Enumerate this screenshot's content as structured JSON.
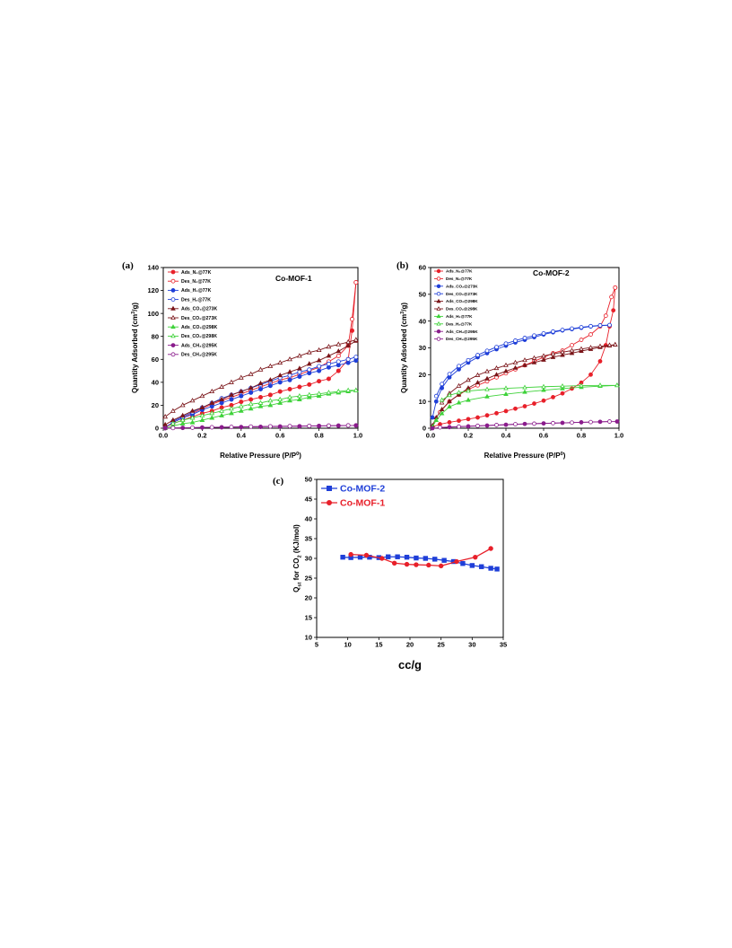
{
  "figure": {
    "panel_tags": [
      "(a)",
      "(b)",
      "(c)"
    ]
  },
  "chart_data": [
    {
      "type": "line",
      "panel_label": "(a)",
      "title": "Co-MOF-1",
      "xlabel": "Relative Pressure (P/P",
      "xlabel_sup": "0",
      "xlabel_end": ")",
      "ylabel": "Quantity Adsorbed (cm",
      "ylabel_sup": "3",
      "ylabel_end": "/g)",
      "xlim": [
        0.0,
        1.0
      ],
      "ylim": [
        0,
        140
      ],
      "xticks": [
        "0.0",
        "0.2",
        "0.4",
        "0.6",
        "0.8",
        "1.0"
      ],
      "yticks": [
        "0",
        "20",
        "40",
        "60",
        "80",
        "100",
        "120",
        "140"
      ],
      "legend_position": "top-left",
      "series": [
        {
          "name": "Ads_N₂@77K",
          "color": "#e8202a",
          "marker": "circle",
          "filled": true,
          "x": [
            0.01,
            0.05,
            0.1,
            0.15,
            0.2,
            0.25,
            0.3,
            0.35,
            0.4,
            0.45,
            0.5,
            0.55,
            0.6,
            0.65,
            0.7,
            0.75,
            0.8,
            0.85,
            0.9,
            0.95,
            0.97,
            0.99
          ],
          "y": [
            1,
            4,
            7,
            10,
            13,
            15,
            18,
            20,
            23,
            25,
            27,
            29,
            32,
            34,
            36,
            38,
            41,
            43,
            50,
            60,
            85,
            127
          ]
        },
        {
          "name": "Des_N₂@77K",
          "color": "#e8202a",
          "marker": "circle",
          "filled": false,
          "x": [
            0.99,
            0.97,
            0.95,
            0.9,
            0.85,
            0.8,
            0.75,
            0.7,
            0.65,
            0.6,
            0.55,
            0.5,
            0.45,
            0.4,
            0.35,
            0.3,
            0.25,
            0.2,
            0.15,
            0.1,
            0.05
          ],
          "y": [
            127,
            95,
            72,
            63,
            58,
            53,
            50,
            47,
            44,
            42,
            39,
            36,
            33,
            30,
            27,
            24,
            21,
            17,
            13,
            9,
            5
          ]
        },
        {
          "name": "Ads_H₂@77K",
          "color": "#1f3fd8",
          "marker": "circle",
          "filled": true,
          "x": [
            0.01,
            0.05,
            0.1,
            0.15,
            0.2,
            0.25,
            0.3,
            0.35,
            0.4,
            0.45,
            0.5,
            0.55,
            0.6,
            0.65,
            0.7,
            0.75,
            0.8,
            0.85,
            0.9,
            0.95,
            0.99
          ],
          "y": [
            1,
            5,
            9,
            12,
            16,
            19,
            22,
            25,
            28,
            31,
            34,
            37,
            40,
            42,
            45,
            48,
            50,
            53,
            55,
            57,
            59
          ]
        },
        {
          "name": "Des_H₂@77K",
          "color": "#1f3fd8",
          "marker": "circle",
          "filled": false,
          "x": [
            0.99,
            0.95,
            0.9,
            0.85,
            0.8,
            0.75,
            0.7,
            0.65,
            0.6,
            0.55,
            0.5,
            0.45,
            0.4,
            0.35,
            0.3,
            0.25,
            0.2,
            0.15,
            0.1,
            0.05
          ],
          "y": [
            62,
            60,
            58,
            56,
            54,
            51,
            49,
            46,
            44,
            41,
            38,
            35,
            32,
            29,
            26,
            22,
            18,
            14,
            10,
            6
          ]
        },
        {
          "name": "Ads_CO₂@273K",
          "color": "#7a1418",
          "marker": "triangle",
          "filled": true,
          "x": [
            0.01,
            0.05,
            0.1,
            0.15,
            0.2,
            0.25,
            0.3,
            0.35,
            0.4,
            0.45,
            0.5,
            0.55,
            0.6,
            0.65,
            0.7,
            0.75,
            0.8,
            0.85,
            0.9,
            0.95,
            0.99
          ],
          "y": [
            3,
            7,
            11,
            15,
            18,
            22,
            25,
            29,
            32,
            35,
            39,
            42,
            46,
            49,
            52,
            56,
            59,
            63,
            67,
            72,
            76
          ]
        },
        {
          "name": "Des_CO₂@273K",
          "color": "#7a1418",
          "marker": "triangle",
          "filled": false,
          "x": [
            0.99,
            0.95,
            0.9,
            0.85,
            0.8,
            0.75,
            0.7,
            0.65,
            0.6,
            0.55,
            0.5,
            0.45,
            0.4,
            0.35,
            0.3,
            0.25,
            0.2,
            0.15,
            0.1,
            0.05,
            0.01
          ],
          "y": [
            77,
            75,
            73,
            71,
            68,
            66,
            63,
            60,
            57,
            54,
            51,
            47,
            44,
            40,
            36,
            32,
            28,
            24,
            20,
            15,
            10
          ]
        },
        {
          "name": "Ads_CO₂@298K",
          "color": "#3fd23a",
          "marker": "triangle",
          "filled": true,
          "x": [
            0.01,
            0.05,
            0.1,
            0.15,
            0.2,
            0.25,
            0.3,
            0.35,
            0.4,
            0.45,
            0.5,
            0.55,
            0.6,
            0.65,
            0.7,
            0.75,
            0.8,
            0.85,
            0.9,
            0.95,
            0.99
          ],
          "y": [
            0,
            2,
            4,
            5,
            7,
            9,
            11,
            13,
            15,
            17,
            19,
            20,
            22,
            24,
            25,
            27,
            28,
            30,
            31,
            32,
            33
          ]
        },
        {
          "name": "Des_CO₂@298K",
          "color": "#3fd23a",
          "marker": "triangle",
          "filled": false,
          "x": [
            0.99,
            0.95,
            0.9,
            0.85,
            0.8,
            0.75,
            0.7,
            0.65,
            0.6,
            0.55,
            0.5,
            0.45,
            0.4,
            0.35,
            0.3,
            0.25,
            0.2,
            0.15,
            0.1,
            0.05
          ],
          "y": [
            33,
            33,
            32,
            31,
            30,
            29,
            28,
            27,
            25,
            24,
            22,
            21,
            19,
            17,
            15,
            13,
            11,
            9,
            7,
            4
          ]
        },
        {
          "name": "Ads_CH₄@295K",
          "color": "#8a1c8c",
          "marker": "circle",
          "filled": true,
          "x": [
            0.01,
            0.1,
            0.2,
            0.3,
            0.4,
            0.5,
            0.6,
            0.7,
            0.8,
            0.9,
            0.99
          ],
          "y": [
            0,
            0.3,
            0.6,
            0.8,
            1,
            1.2,
            1.5,
            1.7,
            2,
            2.2,
            2.4
          ]
        },
        {
          "name": "Des_CH₄@295K",
          "color": "#8a1c8c",
          "marker": "circle",
          "filled": false,
          "x": [
            0.95,
            0.85,
            0.75,
            0.65,
            0.55,
            0.45,
            0.35,
            0.25,
            0.15,
            0.05
          ],
          "y": [
            2.4,
            2.2,
            2,
            1.8,
            1.6,
            1.4,
            1.1,
            0.8,
            0.5,
            0.2
          ]
        }
      ]
    },
    {
      "type": "line",
      "panel_label": "(b)",
      "title": "Co-MOF-2",
      "xlabel": "Relative Pressure (P/P",
      "xlabel_sup": "0",
      "xlabel_end": ")",
      "ylabel": "Quantity Adsorbed (cm",
      "ylabel_sup": "3",
      "ylabel_end": "/g)",
      "xlim": [
        0.0,
        1.0
      ],
      "ylim": [
        0,
        60
      ],
      "xticks": [
        "0.0",
        "0.2",
        "0.4",
        "0.6",
        "0.8",
        "1.0"
      ],
      "yticks": [
        "0",
        "10",
        "20",
        "30",
        "40",
        "50",
        "60"
      ],
      "legend_position": "top-left",
      "series": [
        {
          "name": "Ads_N₂@77K",
          "color": "#e8202a",
          "marker": "circle",
          "filled": true,
          "x": [
            0.01,
            0.05,
            0.1,
            0.15,
            0.2,
            0.25,
            0.3,
            0.35,
            0.4,
            0.45,
            0.5,
            0.55,
            0.6,
            0.65,
            0.7,
            0.75,
            0.8,
            0.85,
            0.9,
            0.93,
            0.95,
            0.97,
            0.98
          ],
          "y": [
            0.5,
            1.5,
            2.2,
            2.8,
            3.4,
            4,
            4.8,
            5.6,
            6.4,
            7.3,
            8.2,
            9.2,
            10.3,
            11.6,
            13,
            14.8,
            17,
            20,
            25,
            31,
            38,
            44,
            52.5
          ]
        },
        {
          "name": "Des_N₂@77K",
          "color": "#e8202a",
          "marker": "circle",
          "filled": false,
          "x": [
            0.98,
            0.96,
            0.93,
            0.9,
            0.85,
            0.8,
            0.75,
            0.7,
            0.65,
            0.6,
            0.55,
            0.5,
            0.45,
            0.4,
            0.35,
            0.3,
            0.25,
            0.2,
            0.15,
            0.1,
            0.05
          ],
          "y": [
            52.5,
            49,
            42,
            38,
            35,
            33,
            31,
            29,
            28,
            26.5,
            25,
            23.5,
            22,
            20.5,
            19,
            17.5,
            16,
            14.5,
            12.5,
            10,
            6
          ]
        },
        {
          "name": "Ads_CO₂@273K",
          "color": "#1f3fd8",
          "marker": "circle",
          "filled": true,
          "x": [
            0.01,
            0.03,
            0.06,
            0.1,
            0.15,
            0.2,
            0.25,
            0.3,
            0.35,
            0.4,
            0.45,
            0.5,
            0.55,
            0.6,
            0.65,
            0.7,
            0.75,
            0.8,
            0.85,
            0.9,
            0.95
          ],
          "y": [
            4,
            10,
            15,
            19,
            22,
            24.5,
            26.5,
            28,
            29.5,
            30.8,
            32,
            33,
            34,
            35,
            35.8,
            36.5,
            37,
            37.5,
            38,
            38.3,
            38.5
          ]
        },
        {
          "name": "Des_CO₂@273K",
          "color": "#1f3fd8",
          "marker": "circle",
          "filled": false,
          "x": [
            0.95,
            0.9,
            0.85,
            0.8,
            0.75,
            0.7,
            0.65,
            0.6,
            0.55,
            0.5,
            0.45,
            0.4,
            0.35,
            0.3,
            0.25,
            0.2,
            0.15,
            0.1,
            0.06,
            0.03
          ],
          "y": [
            38.5,
            38.4,
            38.1,
            37.7,
            37.2,
            36.7,
            36.1,
            35.4,
            34.6,
            33.7,
            32.7,
            31.6,
            30.3,
            28.9,
            27.3,
            25.4,
            23.2,
            20.2,
            16.5,
            12
          ]
        },
        {
          "name": "Ads_CO₂@298K",
          "color": "#7a1418",
          "marker": "triangle",
          "filled": true,
          "x": [
            0.01,
            0.03,
            0.06,
            0.1,
            0.15,
            0.2,
            0.25,
            0.3,
            0.35,
            0.4,
            0.45,
            0.5,
            0.55,
            0.6,
            0.65,
            0.7,
            0.75,
            0.8,
            0.85,
            0.9,
            0.95,
            0.98
          ],
          "y": [
            1,
            4,
            7,
            10,
            12.5,
            15,
            17,
            18.5,
            20,
            21.3,
            22.5,
            23.5,
            24.5,
            25.5,
            26.5,
            27.3,
            28,
            28.8,
            29.5,
            30.2,
            30.8,
            31.2
          ]
        },
        {
          "name": "Des_CO₂@298K",
          "color": "#7a1418",
          "marker": "triangle",
          "filled": false,
          "x": [
            0.98,
            0.95,
            0.9,
            0.85,
            0.8,
            0.75,
            0.7,
            0.65,
            0.6,
            0.55,
            0.5,
            0.45,
            0.4,
            0.35,
            0.3,
            0.25,
            0.2,
            0.15,
            0.1,
            0.06
          ],
          "y": [
            31.2,
            31,
            30.6,
            30.1,
            29.6,
            29,
            28.4,
            27.7,
            27,
            26.2,
            25.4,
            24.5,
            23.5,
            22.4,
            21.2,
            19.8,
            18,
            15.8,
            13,
            9.5
          ]
        },
        {
          "name": "Ads_H₂@77K",
          "color": "#3fd23a",
          "marker": "triangle",
          "filled": true,
          "x": [
            0.01,
            0.03,
            0.06,
            0.1,
            0.15,
            0.2,
            0.3,
            0.4,
            0.5,
            0.6,
            0.7,
            0.8,
            0.9,
            0.99
          ],
          "y": [
            0.5,
            3,
            5.5,
            8,
            9.5,
            10.5,
            11.8,
            12.7,
            13.5,
            14.2,
            14.8,
            15.3,
            15.7,
            16
          ]
        },
        {
          "name": "Des_H₂@77K",
          "color": "#3fd23a",
          "marker": "triangle",
          "filled": false,
          "x": [
            0.99,
            0.9,
            0.8,
            0.7,
            0.6,
            0.5,
            0.4,
            0.3,
            0.2,
            0.15,
            0.1,
            0.06
          ],
          "y": [
            16,
            16,
            15.9,
            15.7,
            15.5,
            15.2,
            14.9,
            14.5,
            13.9,
            13.3,
            12.3,
            10.5
          ]
        },
        {
          "name": "Ads_CH₄@295K",
          "color": "#8a1c8c",
          "marker": "circle",
          "filled": true,
          "x": [
            0.01,
            0.1,
            0.2,
            0.3,
            0.4,
            0.5,
            0.6,
            0.7,
            0.8,
            0.9,
            0.99
          ],
          "y": [
            0,
            0.4,
            0.7,
            1,
            1.3,
            1.6,
            1.8,
            2,
            2.2,
            2.4,
            2.5
          ]
        },
        {
          "name": "Des_CH₄@295K",
          "color": "#8a1c8c",
          "marker": "circle",
          "filled": false,
          "x": [
            0.95,
            0.85,
            0.75,
            0.65,
            0.55,
            0.45,
            0.35,
            0.25,
            0.15,
            0.05
          ],
          "y": [
            2.5,
            2.3,
            2.1,
            1.9,
            1.7,
            1.5,
            1.2,
            0.9,
            0.6,
            0.3
          ]
        }
      ]
    },
    {
      "type": "line",
      "panel_label": "(c)",
      "title": "",
      "xlabel": "cc/g",
      "ylabel_parts": [
        "Q",
        "st",
        " for CO",
        "2",
        " (KJ/mol)"
      ],
      "xlim": [
        5,
        35
      ],
      "ylim": [
        10,
        50
      ],
      "xticks": [
        "5",
        "10",
        "15",
        "20",
        "25",
        "30",
        "35"
      ],
      "yticks": [
        "10",
        "15",
        "20",
        "25",
        "30",
        "35",
        "40",
        "45",
        "50"
      ],
      "legend_position": "top-left",
      "series": [
        {
          "name": "Co-MOF-2",
          "color": "#1f3fd8",
          "marker": "square",
          "filled": true,
          "x": [
            9.2,
            10.5,
            12,
            13.5,
            15,
            16.5,
            18,
            19.5,
            21,
            22.5,
            24,
            25.5,
            27,
            28.5,
            30,
            31.5,
            33,
            34
          ],
          "y": [
            30.3,
            30.2,
            30.3,
            30.3,
            30.2,
            30.4,
            30.4,
            30.3,
            30.1,
            30,
            29.8,
            29.5,
            29.2,
            28.7,
            28.2,
            27.9,
            27.5,
            27.3
          ]
        },
        {
          "name": "Co-MOF-1",
          "color": "#e8202a",
          "marker": "circle",
          "filled": true,
          "x": [
            10.5,
            13,
            15.5,
            17.5,
            19.5,
            21,
            23,
            25,
            27.5,
            30.5,
            33
          ],
          "y": [
            31,
            30.8,
            30,
            28.8,
            28.5,
            28.4,
            28.3,
            28.1,
            29.2,
            30.3,
            32.5
          ]
        }
      ]
    }
  ]
}
